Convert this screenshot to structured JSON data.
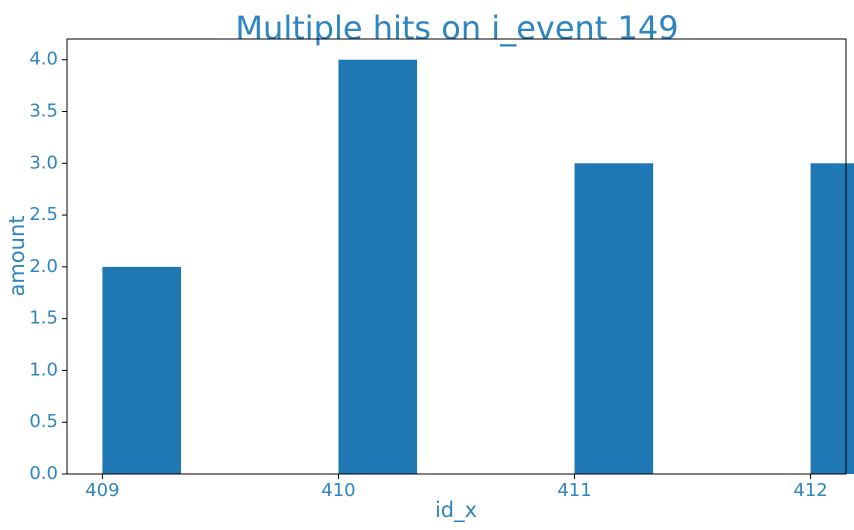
{
  "chart_data": {
    "type": "bar",
    "title": "Multiple hits on i_event 149",
    "xlabel": "id_x",
    "ylabel": "amount",
    "categories": [
      409,
      410,
      411,
      412
    ],
    "values": [
      2,
      4,
      3,
      3
    ],
    "xlim": [
      408.85,
      412.15
    ],
    "ylim": [
      0,
      4.2
    ],
    "bar_width": 0.333,
    "xticks": [
      409,
      410,
      411,
      412
    ],
    "xtick_labels": [
      "409",
      "410",
      "411",
      "412"
    ],
    "yticks": [
      0,
      0.5,
      1,
      1.5,
      2,
      2.5,
      3,
      3.5,
      4
    ],
    "ytick_labels": [
      "0.0",
      "0.5",
      "1.0",
      "1.5",
      "2.0",
      "2.5",
      "3.0",
      "3.5",
      "4.0"
    ],
    "grid": false,
    "colors": {
      "bar": "#1f77b4",
      "text": "#2e86c1",
      "axis": "#000000",
      "background": "#ffffff"
    }
  }
}
